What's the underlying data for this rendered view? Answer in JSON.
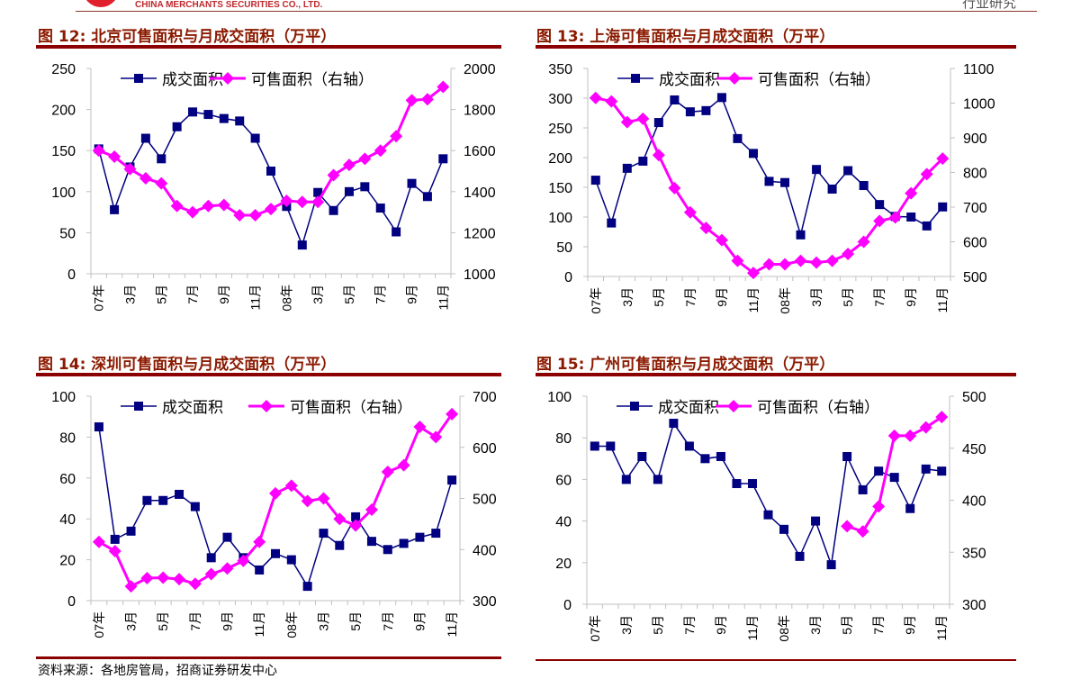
{
  "header": {
    "brand": "CHINA MERCHANTS SECURITIES CO., LTD.",
    "section": "行业研究"
  },
  "source": "资料来源：各地房管局，招商证券研发中心",
  "colors": {
    "deal": "#000080",
    "available": "#ff00ff",
    "title": "#8b1a00",
    "rule": "#8b0000",
    "grid": "#c0c0c0"
  },
  "chart_data": [
    {
      "title": "图 12: 北京可售面积与月成交面积（万平）",
      "type": "line",
      "categories": [
        "07年",
        "",
        "3月",
        "",
        "5月",
        "",
        "7月",
        "",
        "9月",
        "",
        "11月",
        "",
        "08年",
        "",
        "3月",
        "",
        "5月",
        "",
        "7月",
        "",
        "9月",
        "",
        "11月"
      ],
      "yleft": {
        "ticks": [
          "0",
          "50",
          "100",
          "150",
          "200",
          "250"
        ],
        "range": [
          0,
          250
        ]
      },
      "yright": {
        "ticks": [
          "1000",
          "1200",
          "1400",
          "1600",
          "1800",
          "2000"
        ],
        "range": [
          1000,
          2000
        ]
      },
      "legend": "top",
      "series": [
        {
          "name": "成交面积",
          "axis": "left",
          "marker": "square",
          "values": [
            152,
            78,
            130,
            165,
            140,
            179,
            197,
            194,
            189,
            186,
            165,
            125,
            82,
            35,
            99,
            77,
            100,
            106,
            80,
            51,
            110,
            94,
            140
          ]
        },
        {
          "name": "可售面积（右轴）",
          "axis": "right",
          "marker": "diamond",
          "values": [
            1600,
            1570,
            1510,
            1465,
            1440,
            1330,
            1300,
            1330,
            1335,
            1285,
            1285,
            1315,
            1355,
            1350,
            1350,
            1480,
            1530,
            1560,
            1600,
            1670,
            1845,
            1850,
            1910
          ]
        }
      ]
    },
    {
      "title": "图 13: 上海可售面积与月成交面积（万平）",
      "type": "line",
      "categories": [
        "07年",
        "",
        "3月",
        "",
        "5月",
        "",
        "7月",
        "",
        "9月",
        "",
        "11月",
        "",
        "08年",
        "",
        "3月",
        "",
        "5月",
        "",
        "7月",
        "",
        "9月",
        "",
        "11月"
      ],
      "yleft": {
        "ticks": [
          "0",
          "50",
          "100",
          "150",
          "200",
          "250",
          "300",
          "350"
        ],
        "range": [
          0,
          350
        ]
      },
      "yright": {
        "ticks": [
          "500",
          "600",
          "700",
          "800",
          "900",
          "1000",
          "1100"
        ],
        "range": [
          500,
          1100
        ]
      },
      "legend": "top",
      "series": [
        {
          "name": "成交面积",
          "axis": "left",
          "marker": "square",
          "values": [
            162,
            90,
            182,
            194,
            259,
            297,
            277,
            279,
            301,
            232,
            207,
            160,
            158,
            70,
            180,
            147,
            178,
            153,
            121,
            101,
            100,
            85,
            117
          ]
        },
        {
          "name": "可售面积（右轴）",
          "axis": "right",
          "marker": "diamond",
          "values": [
            1015,
            1005,
            945,
            955,
            850,
            755,
            685,
            640,
            605,
            545,
            510,
            535,
            535,
            545,
            540,
            545,
            565,
            600,
            660,
            670,
            740,
            795,
            840
          ]
        }
      ]
    },
    {
      "title": "图 14: 深圳可售面积与月成交面积（万平）",
      "type": "line",
      "categories": [
        "07年",
        "",
        "3月",
        "",
        "5月",
        "",
        "7月",
        "",
        "9月",
        "",
        "11月",
        "",
        "08年",
        "",
        "3月",
        "",
        "5月",
        "",
        "7月",
        "",
        "9月",
        "",
        "11月"
      ],
      "yleft": {
        "ticks": [
          "0",
          "20",
          "40",
          "60",
          "80",
          "100"
        ],
        "range": [
          0,
          100
        ]
      },
      "yright": {
        "ticks": [
          "300",
          "400",
          "500",
          "600",
          "700"
        ],
        "range": [
          300,
          700
        ]
      },
      "legend": "top",
      "series": [
        {
          "name": "成交面积",
          "axis": "left",
          "marker": "square",
          "values": [
            85,
            30,
            34,
            49,
            49,
            52,
            46,
            21,
            31,
            21,
            15,
            23,
            20,
            7,
            33,
            27,
            41,
            29,
            25,
            28,
            31,
            33,
            59
          ]
        },
        {
          "name": "可售面积（右轴）",
          "axis": "right",
          "marker": "diamond",
          "values": [
            415,
            397,
            328,
            344,
            345,
            342,
            333,
            352,
            363,
            378,
            415,
            510,
            525,
            495,
            500,
            460,
            447,
            478,
            552,
            565,
            640,
            620,
            665
          ]
        }
      ]
    },
    {
      "title": "图 15: 广州可售面积与月成交面积（万平）",
      "type": "line",
      "categories": [
        "07年",
        "",
        "3月",
        "",
        "5月",
        "",
        "7月",
        "",
        "9月",
        "",
        "11月",
        "",
        "08年",
        "",
        "3月",
        "",
        "5月",
        "",
        "7月",
        "",
        "9月",
        "",
        "11月"
      ],
      "yleft": {
        "ticks": [
          "0",
          "20",
          "40",
          "60",
          "80",
          "100"
        ],
        "range": [
          0,
          100
        ]
      },
      "yright": {
        "ticks": [
          "300",
          "350",
          "400",
          "450",
          "500"
        ],
        "range": [
          300,
          500
        ]
      },
      "legend": "top",
      "series": [
        {
          "name": "成交面积",
          "axis": "left",
          "marker": "square",
          "values": [
            76,
            76,
            60,
            71,
            60,
            87,
            76,
            70,
            71,
            58,
            58,
            43,
            36,
            23,
            40,
            19,
            71,
            55,
            64,
            61,
            46,
            65,
            64
          ]
        },
        {
          "name": "可售面积（右轴）",
          "axis": "right",
          "marker": "diamond",
          "values": [
            null,
            null,
            null,
            null,
            null,
            null,
            null,
            null,
            null,
            null,
            null,
            null,
            null,
            null,
            null,
            null,
            375,
            370,
            394,
            462,
            462,
            470,
            480
          ]
        }
      ]
    }
  ]
}
